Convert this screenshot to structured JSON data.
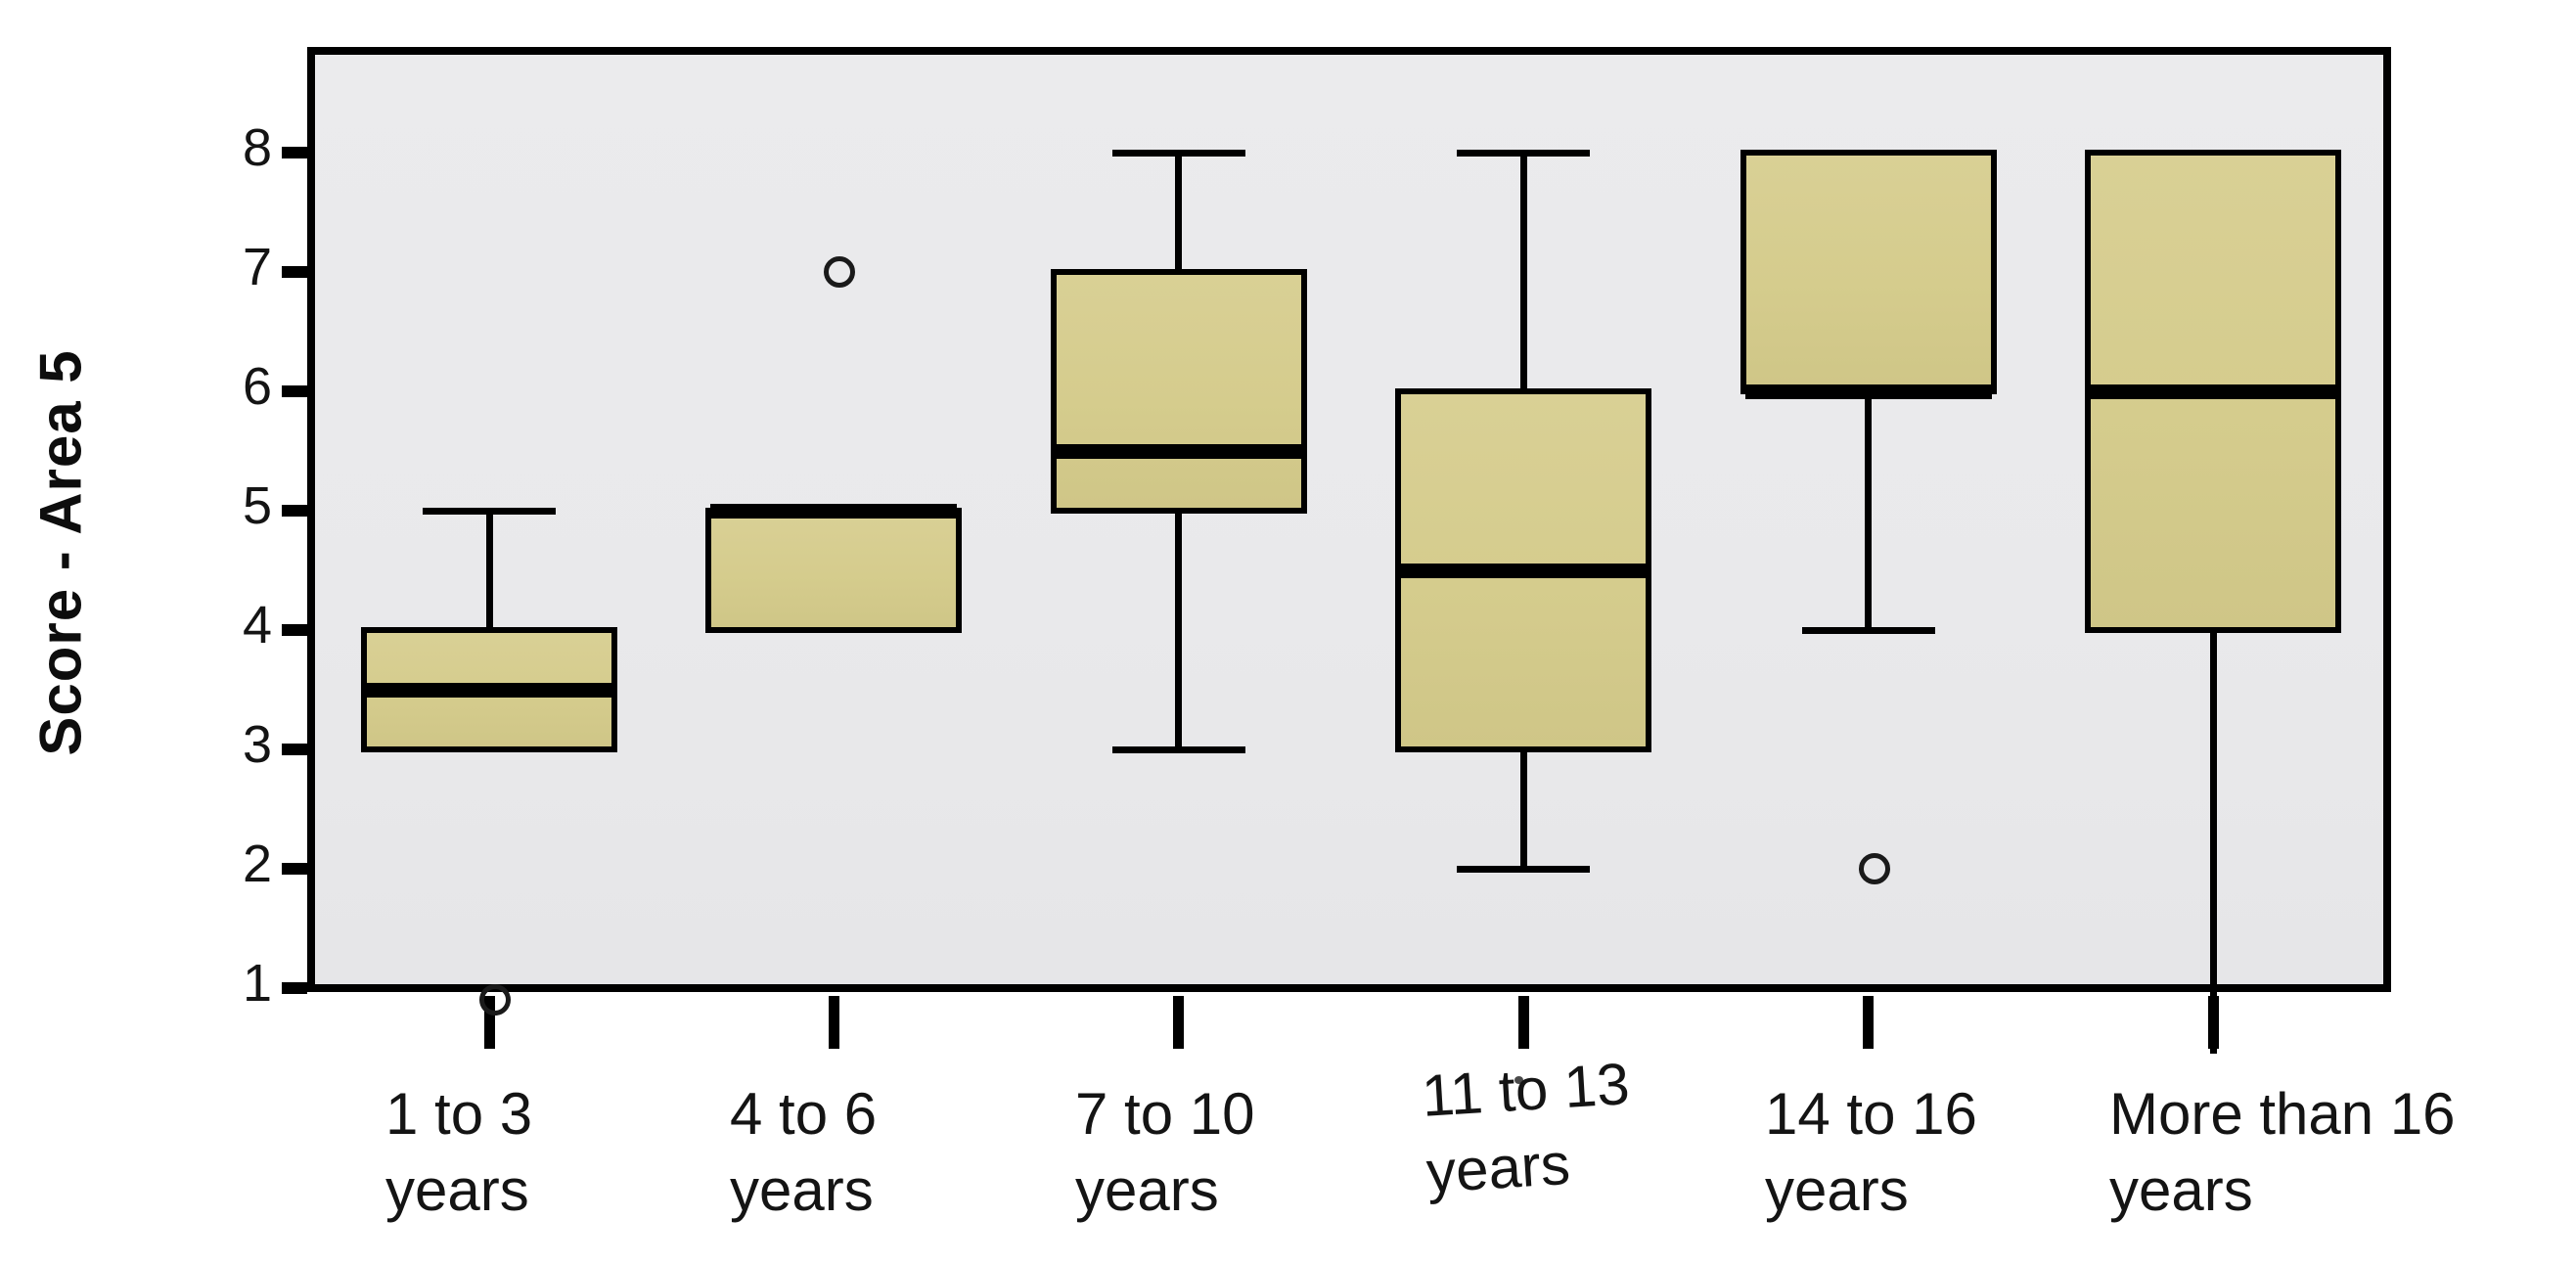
{
  "chart_data": {
    "type": "boxplot",
    "title": "",
    "ylabel": "Score - Area 5",
    "xlabel": "",
    "yticks": [
      8,
      7,
      6,
      5,
      4,
      3,
      2,
      1
    ],
    "ylim": [
      1,
      8.8
    ],
    "grid": false,
    "legend": null,
    "colors": {
      "box_fill": "#d5cc8d",
      "plot_background": "#eaeaec",
      "line": "#000000",
      "page_background": "#ffffff"
    },
    "categories": [
      "1 to 3 years",
      "4 to 6 years",
      "7 to 10 years",
      "11 to 13 years",
      "14 to 16 years",
      "More than 16 years"
    ],
    "groups": [
      {
        "category": "1 to 3 years",
        "label_lines": [
          "1 to 3",
          "years"
        ],
        "q1": 3,
        "median": 3.5,
        "q3": 4,
        "whisker_low": null,
        "whisker_high": 5,
        "outliers": [
          1
        ],
        "outlier_clipped_at_axis": true
      },
      {
        "category": "4 to 6 years",
        "label_lines": [
          "4 to 6",
          "years"
        ],
        "q1": 4,
        "median": 5,
        "q3": 5,
        "whisker_low": null,
        "whisker_high": null,
        "outliers": [
          7
        ]
      },
      {
        "category": "7 to 10 years",
        "label_lines": [
          "7 to 10",
          "years"
        ],
        "q1": 5,
        "median": 5.5,
        "q3": 7,
        "whisker_low": 3,
        "whisker_high": 8,
        "outliers": []
      },
      {
        "category": "11 to 13 years",
        "label_lines": [
          "11 to 13",
          "years"
        ],
        "q1": 3,
        "median": 4.5,
        "q3": 6,
        "whisker_low": 2,
        "whisker_high": 8,
        "outliers": [],
        "label_tilted": true
      },
      {
        "category": "14 to 16 years",
        "label_lines": [
          "14 to 16",
          "years"
        ],
        "q1": 6,
        "median": 6,
        "q3": 8,
        "whisker_low": 4,
        "whisker_high": null,
        "outliers": [
          2
        ]
      },
      {
        "category": "More than 16 years",
        "label_lines": [
          "More than 16",
          "years"
        ],
        "q1": 4,
        "median": 6,
        "q3": 8,
        "whisker_low": 0.45,
        "whisker_high": null,
        "outliers": [],
        "whisker_low_uncapped": true,
        "note": "lower whisker extends below the value-1 axis line in the source image"
      }
    ]
  }
}
